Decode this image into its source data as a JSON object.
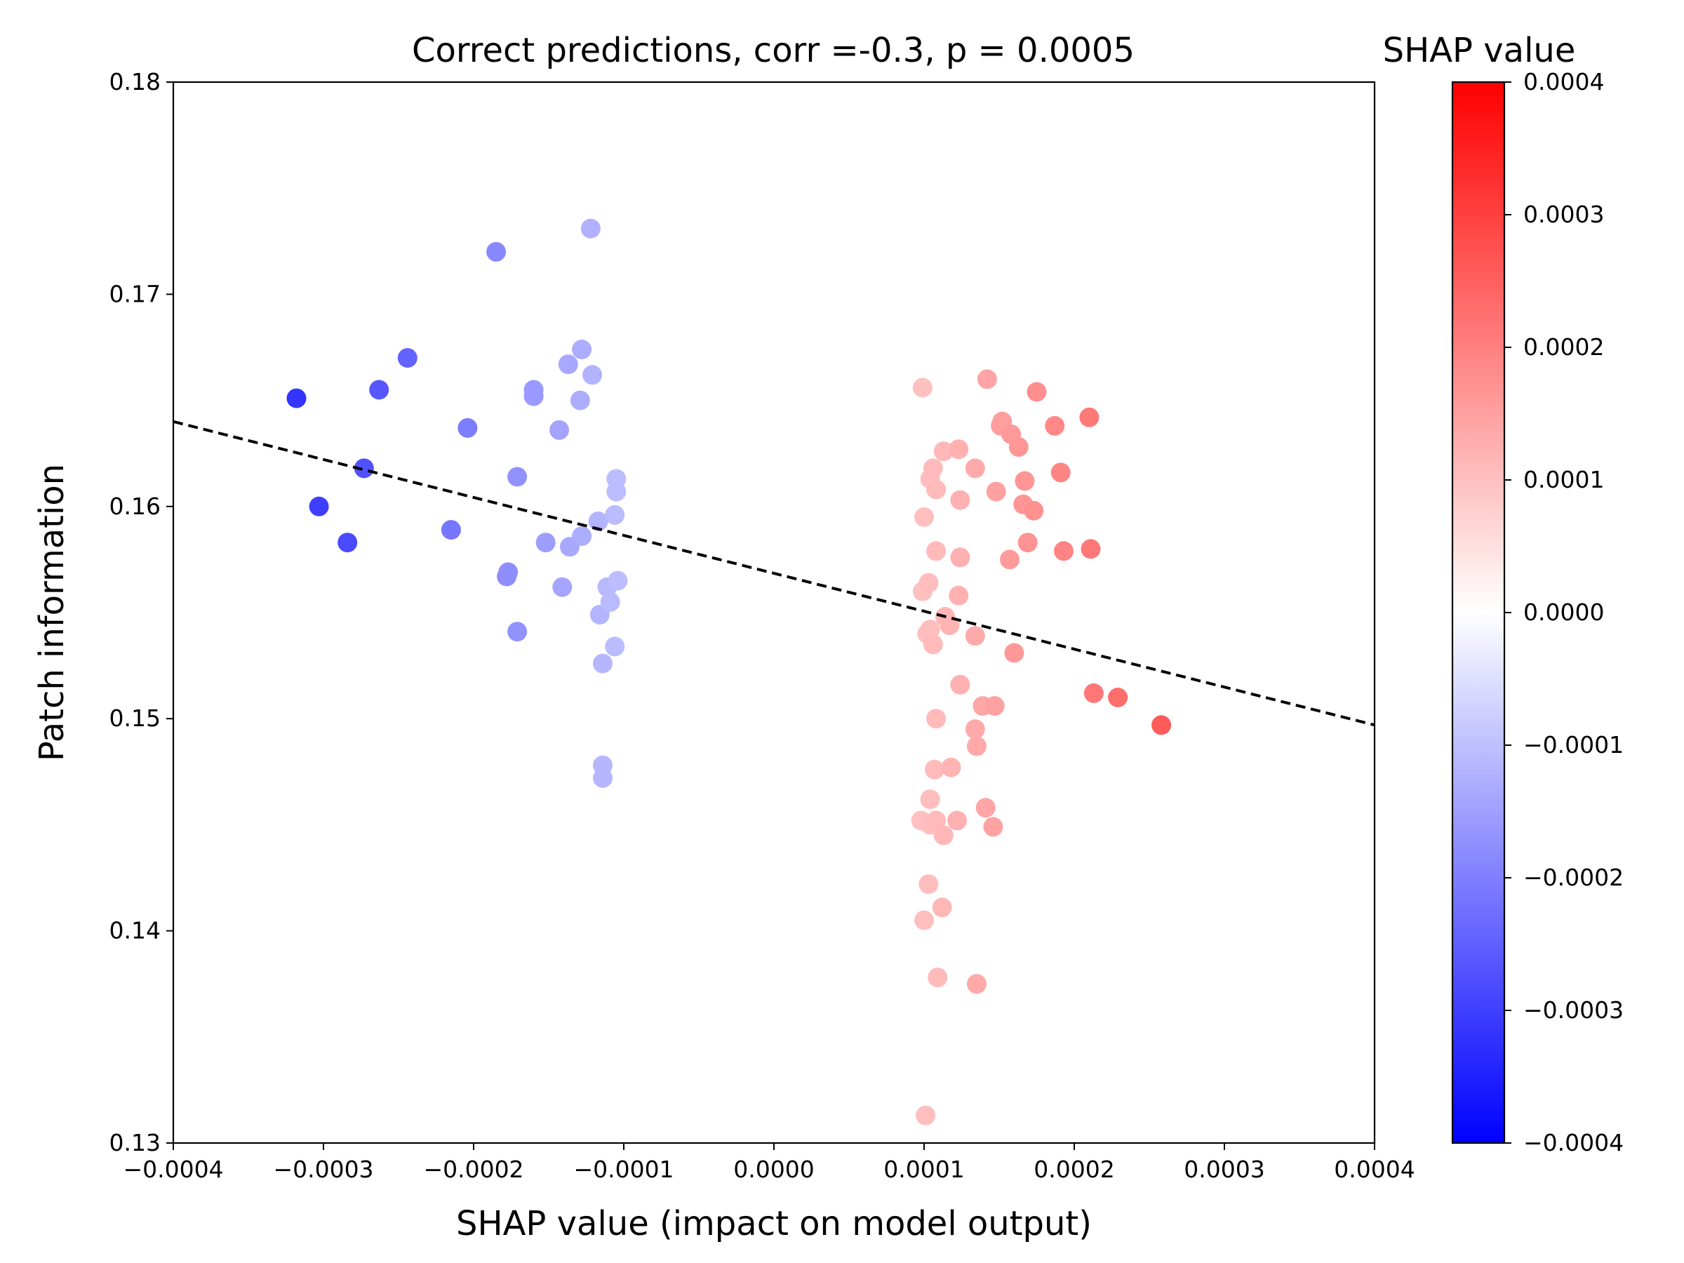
{
  "chart_data": {
    "type": "scatter",
    "title": "Correct predictions, corr =-0.3, p = 0.0005",
    "xlabel": "SHAP value (impact on model output)",
    "ylabel": "Patch information",
    "xlim": [
      -0.0004,
      0.0004
    ],
    "ylim": [
      0.13,
      0.18
    ],
    "xticks": [
      "−0.0004",
      "−0.0003",
      "−0.0002",
      "−0.0001",
      "0.0000",
      "0.0001",
      "0.0002",
      "0.0003",
      "0.0004"
    ],
    "xtick_values": [
      -0.0004,
      -0.0003,
      -0.0002,
      -0.0001,
      0,
      0.0001,
      0.0002,
      0.0003,
      0.0004
    ],
    "yticks": [
      "0.13",
      "0.14",
      "0.15",
      "0.16",
      "0.17",
      "0.18"
    ],
    "ytick_values": [
      0.13,
      0.14,
      0.15,
      0.16,
      0.17,
      0.18
    ],
    "grid": false,
    "colormap": "bwr",
    "colorbar": {
      "title": "SHAP value",
      "range": [
        -0.0004,
        0.0004
      ],
      "ticks": [
        "0.0004",
        "0.0003",
        "0.0002",
        "0.0001",
        "0.0000",
        "−0.0001",
        "−0.0002",
        "−0.0003",
        "−0.0004"
      ],
      "tick_values": [
        0.0004,
        0.0003,
        0.0002,
        0.0001,
        0,
        -0.0001,
        -0.0002,
        -0.0003,
        -0.0004
      ],
      "colors": {
        "low": "#0000ff",
        "mid": "#ffffff",
        "high": "#ff0000"
      }
    },
    "trendline": {
      "style": "dashed",
      "color": "#000000",
      "points": [
        [
          -0.0004,
          0.164
        ],
        [
          0.0004,
          0.1497
        ]
      ]
    },
    "points": [
      [
        -0.000318,
        0.1651
      ],
      [
        -0.000303,
        0.16
      ],
      [
        -0.000284,
        0.1583
      ],
      [
        -0.000273,
        0.1618
      ],
      [
        -0.000263,
        0.1655
      ],
      [
        -0.000244,
        0.167
      ],
      [
        -0.000215,
        0.1589
      ],
      [
        -0.000204,
        0.1637
      ],
      [
        -0.000185,
        0.172
      ],
      [
        -0.000177,
        0.1569
      ],
      [
        -0.000178,
        0.1567
      ],
      [
        -0.000171,
        0.1614
      ],
      [
        -0.000171,
        0.1541
      ],
      [
        -0.00016,
        0.1655
      ],
      [
        -0.00016,
        0.1652
      ],
      [
        -0.000152,
        0.1583
      ],
      [
        -0.000143,
        0.1636
      ],
      [
        -0.000141,
        0.1562
      ],
      [
        -0.000137,
        0.1667
      ],
      [
        -0.000136,
        0.1581
      ],
      [
        -0.000128,
        0.1674
      ],
      [
        -0.000129,
        0.165
      ],
      [
        -0.000128,
        0.1586
      ],
      [
        -0.000121,
        0.1662
      ],
      [
        -0.000122,
        0.1731
      ],
      [
        -0.000117,
        0.1593
      ],
      [
        -0.000116,
        0.1549
      ],
      [
        -0.000114,
        0.1526
      ],
      [
        -0.000114,
        0.1478
      ],
      [
        -0.000114,
        0.1472
      ],
      [
        -0.000111,
        0.1562
      ],
      [
        -0.000109,
        0.1555
      ],
      [
        -0.000106,
        0.1534
      ],
      [
        -0.000105,
        0.1613
      ],
      [
        -0.000105,
        0.1607
      ],
      [
        -0.000106,
        0.1596
      ],
      [
        -0.000104,
        0.1565
      ],
      [
        9.9e-05,
        0.1656
      ],
      [
        0.0001,
        0.1595
      ],
      [
        9.9e-05,
        0.156
      ],
      [
        0.000103,
        0.1564
      ],
      [
        0.000102,
        0.154
      ],
      [
        0.000104,
        0.1542
      ],
      [
        0.000106,
        0.1535
      ],
      [
        0.000104,
        0.1613
      ],
      [
        0.000106,
        0.1618
      ],
      [
        0.000108,
        0.1608
      ],
      [
        0.000108,
        0.1579
      ],
      [
        0.000108,
        0.15
      ],
      [
        0.000107,
        0.1476
      ],
      [
        0.000104,
        0.1462
      ],
      [
        9.8e-05,
        0.1452
      ],
      [
        0.000104,
        0.145
      ],
      [
        0.000108,
        0.1452
      ],
      [
        0.000113,
        0.1445
      ],
      [
        0.000103,
        0.1422
      ],
      [
        0.0001,
        0.1405
      ],
      [
        0.000112,
        0.1411
      ],
      [
        0.000109,
        0.1378
      ],
      [
        0.000101,
        0.1313
      ],
      [
        0.000113,
        0.1626
      ],
      [
        0.000114,
        0.1548
      ],
      [
        0.000117,
        0.1544
      ],
      [
        0.000118,
        0.1477
      ],
      [
        0.000122,
        0.1452
      ],
      [
        0.000123,
        0.1627
      ],
      [
        0.000124,
        0.1603
      ],
      [
        0.000124,
        0.1576
      ],
      [
        0.000123,
        0.1558
      ],
      [
        0.000124,
        0.1516
      ],
      [
        0.000134,
        0.1618
      ],
      [
        0.000134,
        0.1539
      ],
      [
        0.000134,
        0.1495
      ],
      [
        0.000135,
        0.1487
      ],
      [
        0.000139,
        0.1506
      ],
      [
        0.000141,
        0.1458
      ],
      [
        0.000135,
        0.1375
      ],
      [
        0.000142,
        0.166
      ],
      [
        0.000146,
        0.1449
      ],
      [
        0.000147,
        0.1506
      ],
      [
        0.000148,
        0.1607
      ],
      [
        0.000151,
        0.1638
      ],
      [
        0.000152,
        0.164
      ],
      [
        0.000157,
        0.1575
      ],
      [
        0.000158,
        0.1634
      ],
      [
        0.00016,
        0.1531
      ],
      [
        0.000163,
        0.1628
      ],
      [
        0.000166,
        0.1601
      ],
      [
        0.000167,
        0.1612
      ],
      [
        0.000169,
        0.1583
      ],
      [
        0.000173,
        0.1598
      ],
      [
        0.000175,
        0.1654
      ],
      [
        0.000187,
        0.1638
      ],
      [
        0.000191,
        0.1616
      ],
      [
        0.000193,
        0.1579
      ],
      [
        0.00021,
        0.1642
      ],
      [
        0.000211,
        0.158
      ],
      [
        0.000213,
        0.1512
      ],
      [
        0.000229,
        0.151
      ],
      [
        0.000258,
        0.1497
      ]
    ]
  }
}
